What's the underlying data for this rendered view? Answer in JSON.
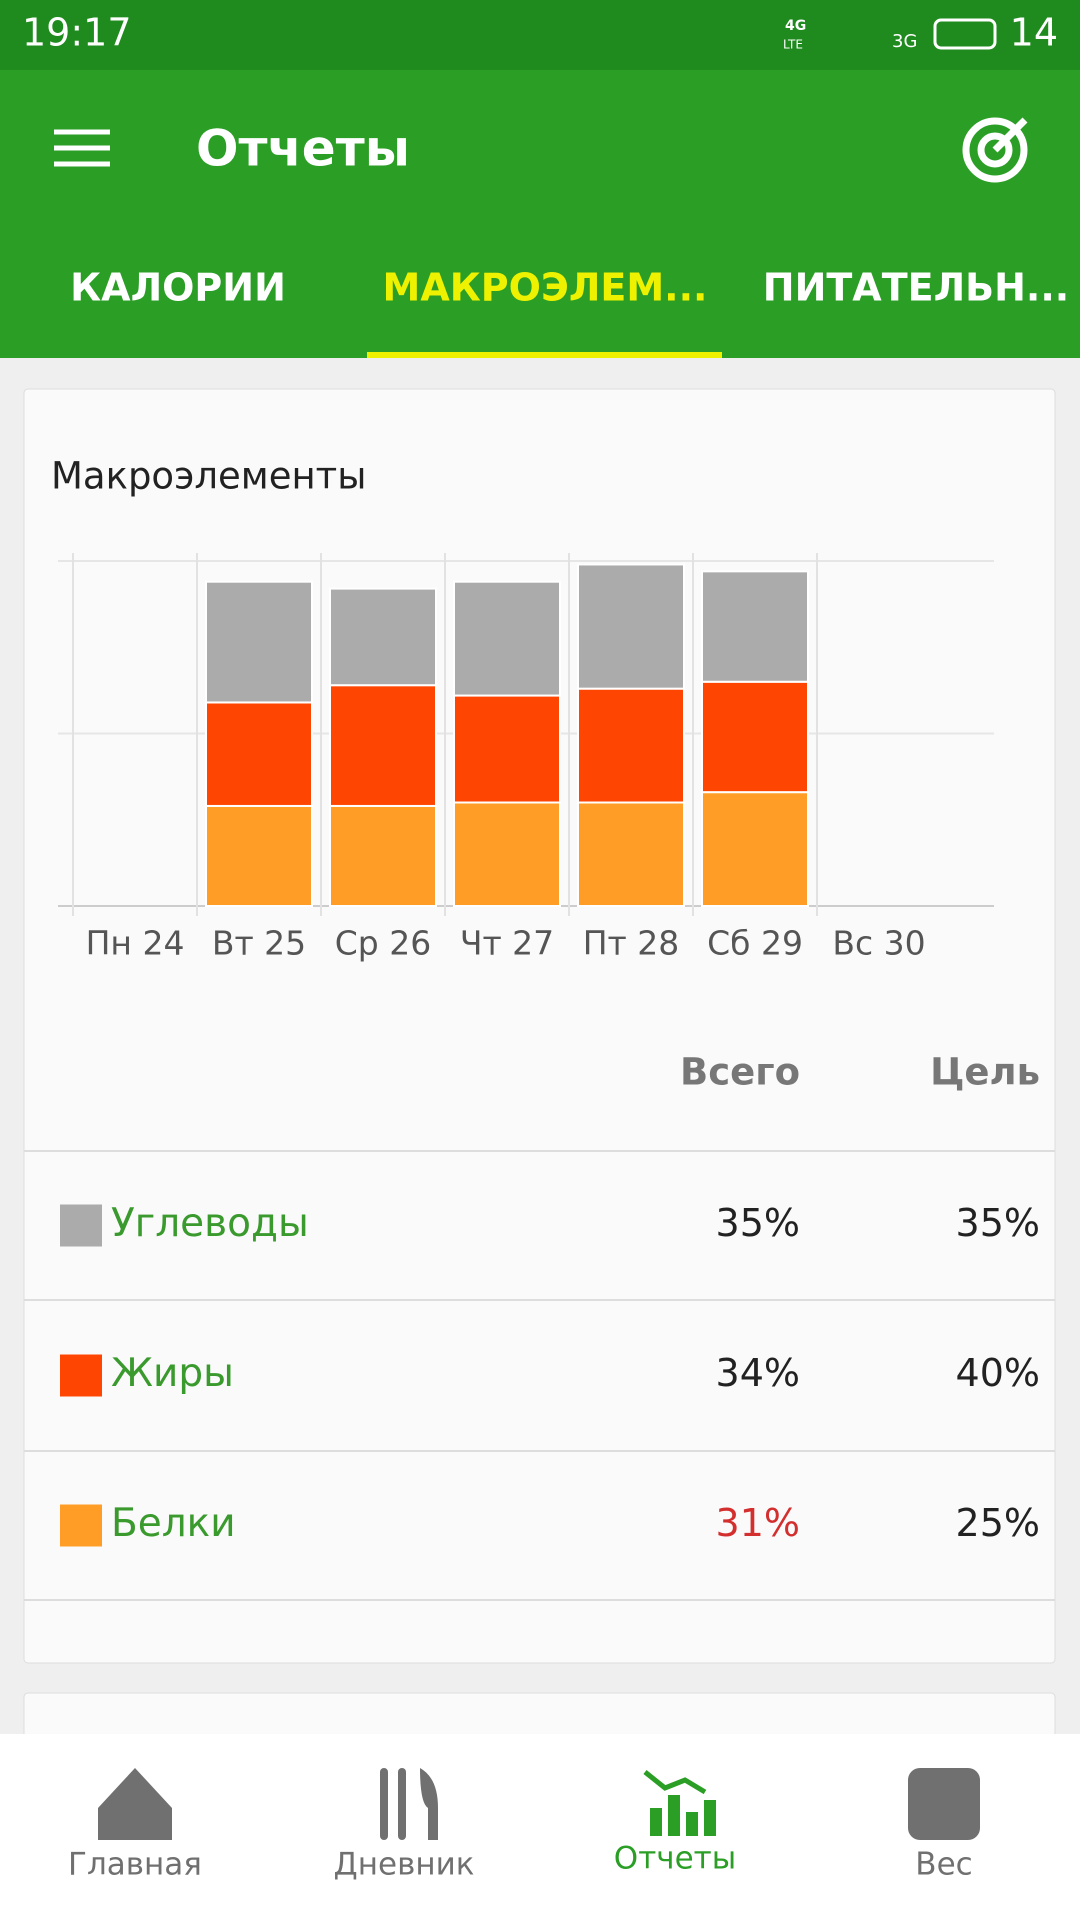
{
  "status_bar": {
    "time": "19:17",
    "net1": "4G",
    "net1_sub": "LTE",
    "net2": "3G",
    "battery": "14"
  },
  "app_bar": {
    "title": "Отчеты"
  },
  "tabs": [
    "КАЛОРИИ",
    "МАКРОЭЛЕМ...",
    "ПИТАТЕЛЬН..."
  ],
  "chart_data": {
    "type": "stacked_bar",
    "title": "Макроэлементы",
    "categories": [
      "Пн 24",
      "Вт 25",
      "Ср 26",
      "Чт 27",
      "Пт 28",
      "Сб 29",
      "Вс 30"
    ],
    "series": [
      {
        "name": "Белки",
        "color": "#ff9d27",
        "values": [
          null,
          29,
          29,
          30,
          30,
          33,
          null
        ]
      },
      {
        "name": "Жиры",
        "color": "#ff4502",
        "values": [
          null,
          30,
          35,
          31,
          33,
          32,
          null
        ]
      },
      {
        "name": "Углеводы",
        "color": "#ababab",
        "values": [
          null,
          35,
          28,
          33,
          36,
          32,
          null
        ]
      }
    ],
    "ylim": [
      0,
      100
    ],
    "yticks": [
      0,
      50,
      100
    ],
    "grid": true
  },
  "table": {
    "header": [
      "Всего",
      "Цель"
    ],
    "rows": [
      {
        "series": 2,
        "total": "35%",
        "goal": "35%",
        "over": false
      },
      {
        "series": 1,
        "total": "34%",
        "goal": "40%",
        "over": false
      },
      {
        "series": 0,
        "total": "31%",
        "goal": "25%",
        "over": true
      }
    ]
  },
  "nav": [
    "Главная",
    "Дневник",
    "Отчеты",
    "Вес"
  ]
}
